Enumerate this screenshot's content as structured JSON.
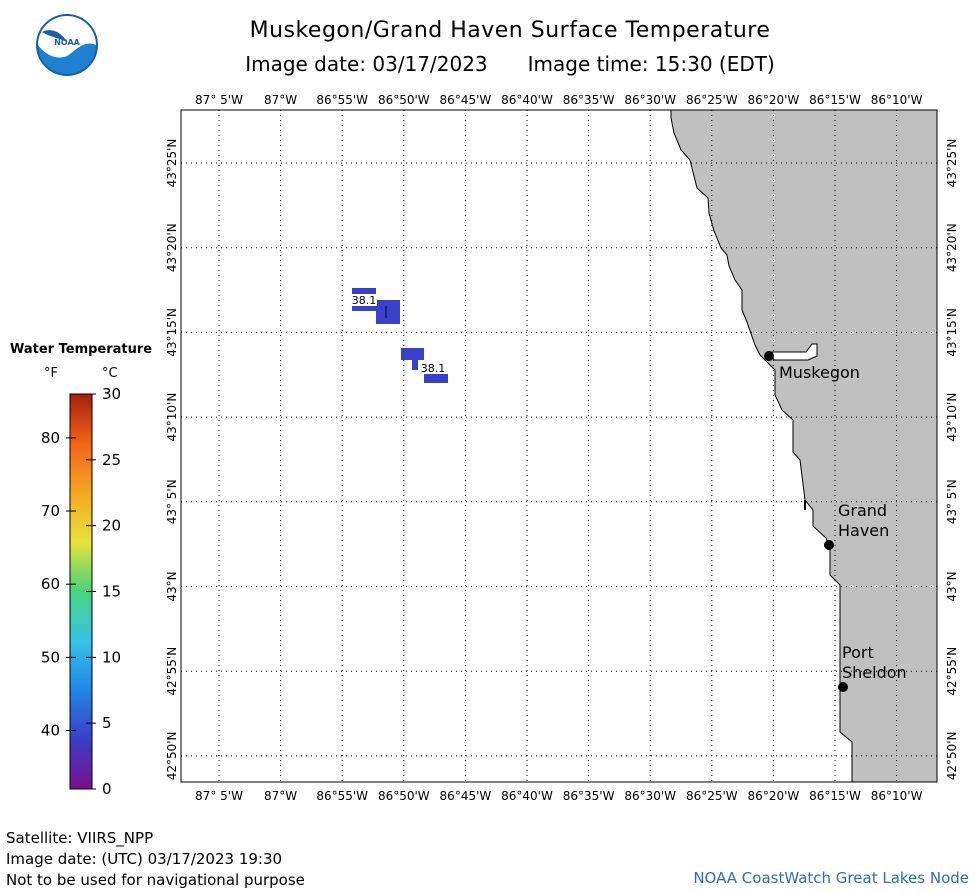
{
  "header": {
    "title": "Muskegon/Grand Haven Surface Temperature",
    "image_date": "Image date: 03/17/2023",
    "image_time": "Image time: 15:30 (EDT)"
  },
  "logo": {
    "text": "NOAA",
    "icon": "noaa-logo-icon"
  },
  "legend": {
    "title": "Water Temperature",
    "unit_f": "°F",
    "unit_c": "°C",
    "f_ticks": [
      {
        "value": 40,
        "label": "40"
      },
      {
        "value": 50,
        "label": "50"
      },
      {
        "value": 60,
        "label": "60"
      },
      {
        "value": 70,
        "label": "70"
      },
      {
        "value": 80,
        "label": "80"
      }
    ],
    "c_ticks": [
      {
        "value": 0,
        "label": "0"
      },
      {
        "value": 5,
        "label": "5"
      },
      {
        "value": 10,
        "label": "10"
      },
      {
        "value": 15,
        "label": "15"
      },
      {
        "value": 20,
        "label": "20"
      },
      {
        "value": 25,
        "label": "25"
      },
      {
        "value": 30,
        "label": "30"
      }
    ],
    "colors": [
      "#7a0f8c",
      "#3a3fc8",
      "#1f86e6",
      "#39c4e6",
      "#47d27c",
      "#e6e33a",
      "#f5a623",
      "#f26418",
      "#a51f0f"
    ]
  },
  "map": {
    "lon_labels": [
      "87° 5'W",
      "87°W",
      "86°55'W",
      "86°50'W",
      "86°45'W",
      "86°40'W",
      "86°35'W",
      "86°30'W",
      "86°25'W",
      "86°20'W",
      "86°15'W",
      "86°10'W"
    ],
    "lat_labels": [
      "43°25'N",
      "43°20'N",
      "43°15'N",
      "43°10'N",
      "43° 5'N",
      "43°N",
      "42°55'N",
      "42°50'N"
    ],
    "land_color": "#c0c0c0",
    "water_temp_color": "#3a40c8",
    "sst_labels": [
      {
        "text": "38.1",
        "lon": -86.9,
        "lat": 43.28
      },
      {
        "text": "38.1",
        "lon": -86.79,
        "lat": 43.22
      }
    ],
    "cities": [
      {
        "name": "Muskegon",
        "lon": -86.34,
        "lat": 43.23
      },
      {
        "name": "Grand Haven",
        "lon": -86.26,
        "lat": 43.06
      },
      {
        "name": "Port Sheldon",
        "lon": -86.24,
        "lat": 42.93
      }
    ]
  },
  "footer": {
    "satellite": "Satellite: VIIRS_NPP",
    "utc_date": "Image date: (UTC) 03/17/2023  19:30",
    "disclaimer": "Not to be used for navigational purpose",
    "credit": "NOAA CoastWatch Great Lakes Node"
  }
}
